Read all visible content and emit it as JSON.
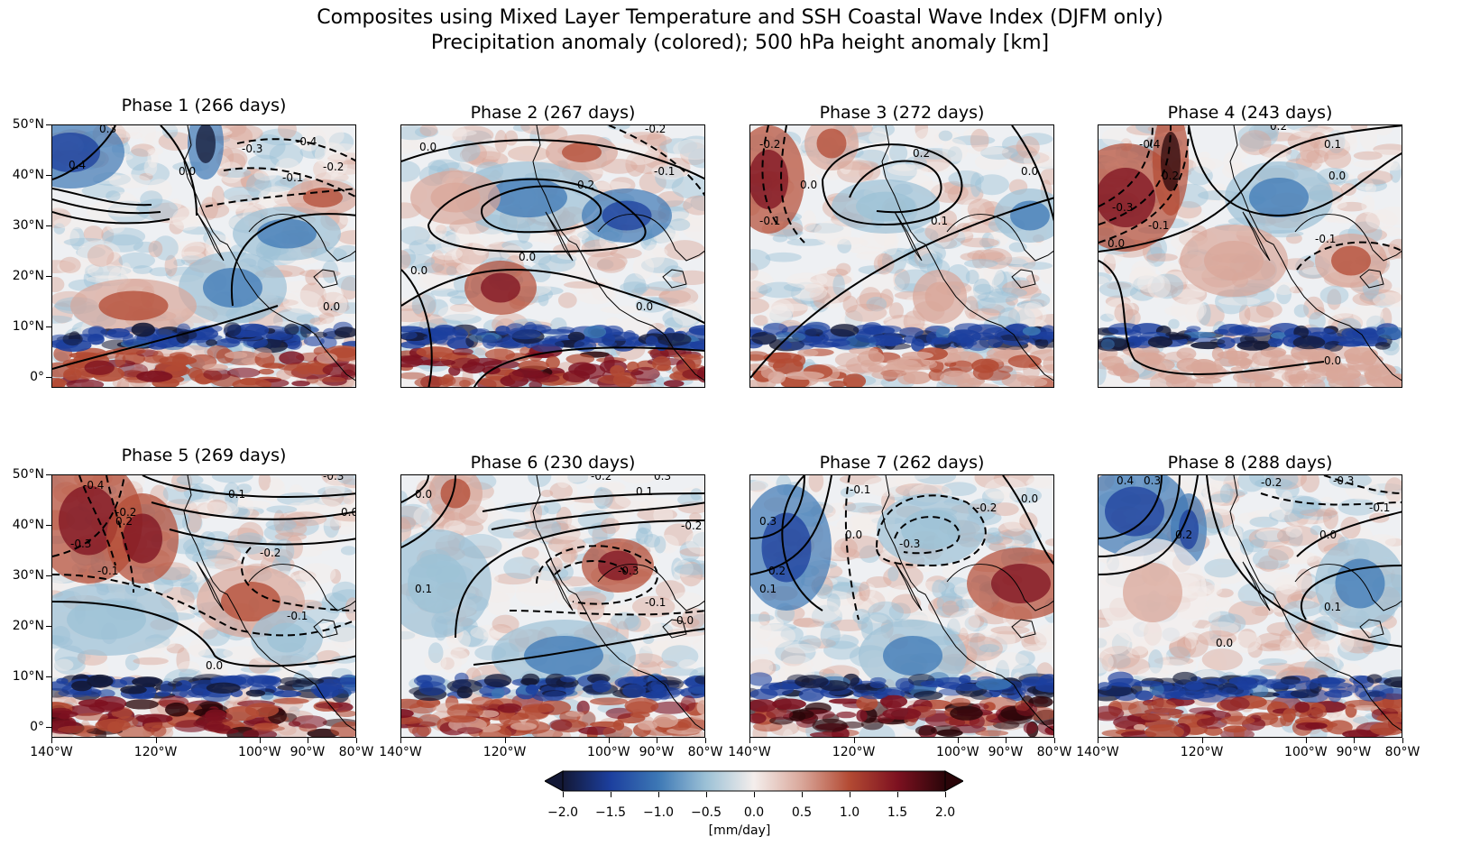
{
  "figure": {
    "title_line1": "Composites using Mixed Layer Temperature and SSH Coastal Wave Index (DJFM only)",
    "title_line2": "Precipitation anomaly (colored); 500 hPa height anomaly [km]"
  },
  "panels": [
    {
      "title": "Phase 1 (266 days)",
      "contour_labels": [
        "0.3",
        "0.4",
        "-0.3",
        "-0.4",
        "-0.2",
        "-0.1",
        "0.0",
        "0.0"
      ]
    },
    {
      "title": "Phase 2 (267 days)",
      "contour_labels": [
        "0.0",
        "-0.2",
        "-0.1",
        "0.2",
        "0.0",
        "0.0",
        "0.0"
      ]
    },
    {
      "title": "Phase 3 (272 days)",
      "contour_labels": [
        "-0.2",
        "0.0",
        "-0.1",
        "0.2",
        "0.1",
        "0.0"
      ]
    },
    {
      "title": "Phase 4 (243 days)",
      "contour_labels": [
        "0.2",
        "-0.4",
        "0.2",
        "0.1",
        "0.0",
        "-0.3",
        "-0.1",
        "-0.1",
        "0.0",
        "0.0"
      ]
    },
    {
      "title": "Phase 5 (269 days)",
      "contour_labels": [
        "-0.4",
        "-0.2",
        "0.2",
        "0.1",
        "-0.3",
        "0.0",
        "-0.3",
        "-0.1",
        "-0.2",
        "-0.1",
        "0.0"
      ]
    },
    {
      "title": "Phase 6 (230 days)",
      "contour_labels": [
        "0.0",
        "-0.2",
        "0.3",
        "0.1",
        "-0.2",
        "-0.3",
        "0.1",
        "-0.1",
        "0.0"
      ]
    },
    {
      "title": "Phase 7 (262 days)",
      "contour_labels": [
        "-0.1",
        "0.3",
        "0.0",
        "0.2",
        "0.1",
        "-0.3",
        "-0.2",
        "0.0"
      ]
    },
    {
      "title": "Phase 8 (288 days)",
      "contour_labels": [
        "0.4",
        "0.3",
        "0.2",
        "-0.2",
        "-0.3",
        "-0.1",
        "0.0",
        "0.1",
        "0.0"
      ]
    }
  ],
  "axes": {
    "lat_ticks": [
      "50°N",
      "40°N",
      "30°N",
      "20°N",
      "10°N",
      "0°"
    ],
    "lon_ticks": [
      "140°W",
      "120°W",
      "100°W",
      "90°W",
      "80°W"
    ]
  },
  "colorbar": {
    "ticks": [
      "−2.0",
      "−1.5",
      "−1.0",
      "−0.5",
      "0.0",
      "0.5",
      "1.0",
      "1.5",
      "2.0"
    ],
    "label": "[mm/day]",
    "colors": [
      "#131836",
      "#1c3f9e",
      "#3d78b5",
      "#9cc1d6",
      "#f4eeec",
      "#d9a79a",
      "#b34a33",
      "#7d1120",
      "#2a0509"
    ]
  }
}
